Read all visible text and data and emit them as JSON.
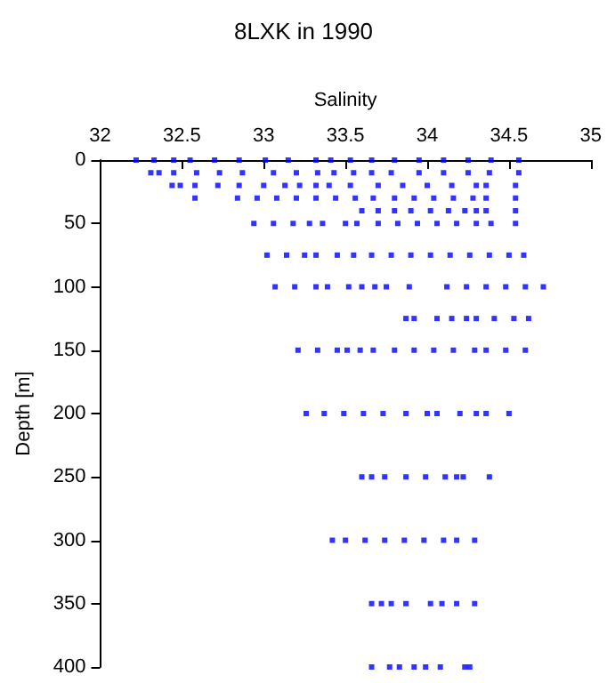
{
  "chart_data": {
    "type": "scatter",
    "title": "8LXK in 1990",
    "xlabel": "Salinity",
    "ylabel": "Depth [m]",
    "xlim": [
      32,
      35
    ],
    "xticks": [
      32,
      32.5,
      33,
      33.5,
      34,
      34.5,
      35
    ],
    "ylim": [
      400,
      0
    ],
    "yticks": [
      0,
      50,
      100,
      150,
      200,
      250,
      300,
      350,
      400
    ],
    "grid": false,
    "marker": "square",
    "series": [
      {
        "color": "#0000ff",
        "x": [
          32.22,
          32.33,
          32.45,
          32.55,
          32.7,
          32.85,
          33.01,
          33.15,
          33.32,
          33.41,
          33.53,
          33.66,
          33.8,
          33.95,
          34.1,
          34.25,
          34.39,
          34.56
        ],
        "values": [
          0,
          0,
          0,
          0,
          0,
          0,
          0,
          0,
          0,
          0,
          0,
          0,
          0,
          0,
          0,
          0,
          0,
          0
        ]
      },
      {
        "color": "#0000ff",
        "x": [
          32.31,
          32.36,
          32.45,
          32.59,
          32.73,
          32.87,
          33.06,
          33.2,
          33.33,
          33.43,
          33.55,
          33.66,
          33.78,
          33.95,
          34.1,
          34.25,
          34.38,
          34.56
        ],
        "values": [
          10,
          10,
          10,
          10,
          10,
          10,
          10,
          10,
          10,
          10,
          10,
          10,
          10,
          10,
          10,
          10,
          10,
          10
        ]
      },
      {
        "color": "#0000ff",
        "x": [
          32.44,
          32.49,
          32.58,
          32.72,
          32.85,
          33.0,
          33.13,
          33.22,
          33.32,
          33.4,
          33.53,
          33.7,
          33.85,
          34.0,
          34.15,
          34.3,
          34.36,
          34.54
        ],
        "values": [
          20,
          20,
          20,
          20,
          20,
          20,
          20,
          20,
          20,
          20,
          20,
          20,
          20,
          20,
          20,
          20,
          20,
          20
        ]
      },
      {
        "color": "#0000ff",
        "x": [
          32.58,
          32.84,
          32.96,
          33.08,
          33.2,
          33.32,
          33.44,
          33.56,
          33.67,
          33.8,
          33.92,
          34.04,
          34.16,
          34.28,
          34.36,
          34.54
        ],
        "values": [
          30,
          30,
          30,
          30,
          30,
          30,
          30,
          30,
          30,
          30,
          30,
          30,
          30,
          30,
          30,
          30
        ]
      },
      {
        "color": "#0000ff",
        "x": [
          33.6,
          33.7,
          33.8,
          33.9,
          34.02,
          34.13,
          34.23,
          34.3,
          34.36,
          34.54
        ],
        "values": [
          40,
          40,
          40,
          40,
          40,
          40,
          40,
          40,
          40,
          40
        ]
      },
      {
        "color": "#0000ff",
        "x": [
          32.94,
          33.06,
          33.18,
          33.28,
          33.36,
          33.5,
          33.57,
          33.7,
          33.82,
          33.94,
          34.06,
          34.18,
          34.3,
          34.39,
          34.54
        ],
        "values": [
          50,
          50,
          50,
          50,
          50,
          50,
          50,
          50,
          50,
          50,
          50,
          50,
          50,
          50,
          50
        ]
      },
      {
        "color": "#0000ff",
        "x": [
          33.02,
          33.14,
          33.25,
          33.32,
          33.45,
          33.55,
          33.66,
          33.78,
          33.9,
          34.02,
          34.14,
          34.26,
          34.38,
          34.5,
          34.59
        ],
        "values": [
          75,
          75,
          75,
          75,
          75,
          75,
          75,
          75,
          75,
          75,
          75,
          75,
          75,
          75,
          75
        ]
      },
      {
        "color": "#0000ff",
        "x": [
          33.07,
          33.19,
          33.32,
          33.39,
          33.52,
          33.6,
          33.68,
          33.75,
          33.89,
          34.12,
          34.24,
          34.36,
          34.48,
          34.6,
          34.71
        ],
        "values": [
          100,
          100,
          100,
          100,
          100,
          100,
          100,
          100,
          100,
          100,
          100,
          100,
          100,
          100,
          100
        ]
      },
      {
        "color": "#0000ff",
        "x": [
          33.87,
          33.92,
          34.06,
          34.15,
          34.24,
          34.3,
          34.41,
          34.53,
          34.62
        ],
        "values": [
          125,
          125,
          125,
          125,
          125,
          125,
          125,
          125,
          125
        ]
      },
      {
        "color": "#0000ff",
        "x": [
          33.21,
          33.33,
          33.45,
          33.51,
          33.59,
          33.67,
          33.8,
          33.92,
          34.04,
          34.16,
          34.29,
          34.36,
          34.48,
          34.6
        ],
        "values": [
          150,
          150,
          150,
          150,
          150,
          150,
          150,
          150,
          150,
          150,
          150,
          150,
          150,
          150
        ]
      },
      {
        "color": "#0000ff",
        "x": [
          33.26,
          33.37,
          33.49,
          33.61,
          33.73,
          33.87,
          34.0,
          34.06,
          34.2,
          34.3,
          34.36,
          34.5
        ],
        "values": [
          200,
          200,
          200,
          200,
          200,
          200,
          200,
          200,
          200,
          200,
          200,
          200
        ]
      },
      {
        "color": "#0000ff",
        "x": [
          33.6,
          33.66,
          33.74,
          33.87,
          33.99,
          34.11,
          34.18,
          34.22,
          34.38
        ],
        "values": [
          250,
          250,
          250,
          250,
          250,
          250,
          250,
          250,
          250
        ]
      },
      {
        "color": "#0000ff",
        "x": [
          33.42,
          33.5,
          33.62,
          33.74,
          33.86,
          33.98,
          34.1,
          34.18,
          34.29
        ],
        "values": [
          300,
          300,
          300,
          300,
          300,
          300,
          300,
          300,
          300
        ]
      },
      {
        "color": "#0000ff",
        "x": [
          33.66,
          33.72,
          33.78,
          33.87,
          34.02,
          34.09,
          34.18,
          34.29
        ],
        "values": [
          350,
          350,
          350,
          350,
          350,
          350,
          350,
          350
        ]
      },
      {
        "color": "#0000ff",
        "x": [
          33.66,
          33.77,
          33.83,
          33.92,
          33.99,
          34.08,
          34.23,
          34.26
        ],
        "values": [
          400,
          400,
          400,
          400,
          400,
          400,
          400,
          400
        ]
      }
    ]
  }
}
